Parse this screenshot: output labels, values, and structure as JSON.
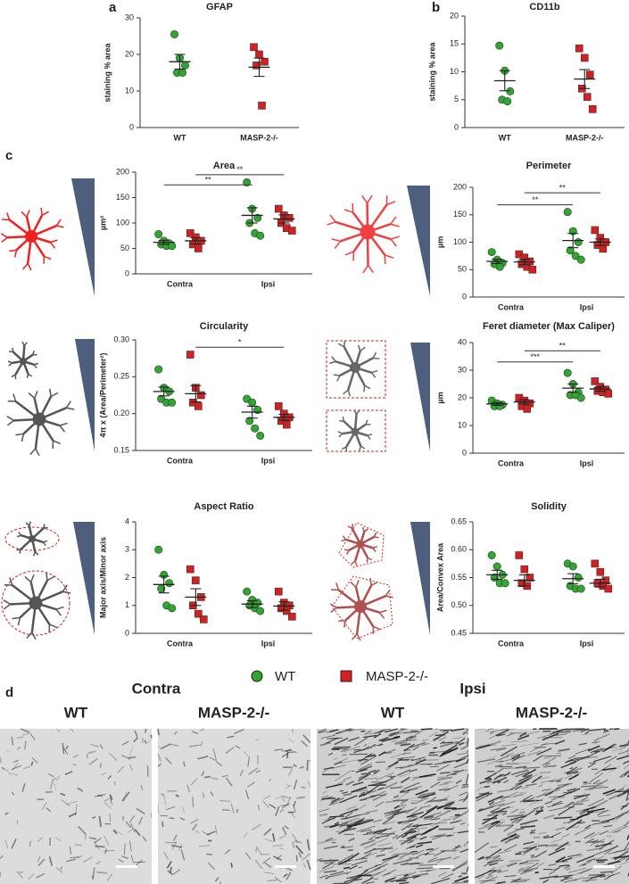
{
  "panel_labels": [
    "a",
    "b",
    "c",
    "d"
  ],
  "legend": [
    {
      "name": "WT",
      "color": "#2fa82f",
      "marker": "circle"
    },
    {
      "name": "MASP-2-/-",
      "color": "#d42020",
      "marker": "square"
    }
  ],
  "chart_data": [
    {
      "type": "dot",
      "title": "GFAP",
      "y_label": "staining % area",
      "categories": [
        "WT",
        "MASP-2-/-"
      ],
      "colors": [
        "#2fa82f",
        "#d42020"
      ],
      "markers": [
        "circle",
        "square"
      ],
      "values": [
        [
          25.5,
          19,
          17,
          15,
          15
        ],
        [
          22,
          20,
          18,
          17,
          6
        ]
      ],
      "mean": [
        18,
        16.5
      ],
      "sem": [
        2,
        2.5
      ],
      "ylim": [
        0,
        30
      ],
      "yticks": [
        0,
        10,
        20,
        30
      ]
    },
    {
      "type": "dot",
      "title": "CD11b",
      "y_label": "staining % area",
      "categories": [
        "WT",
        "MASP-2-/-"
      ],
      "colors": [
        "#2fa82f",
        "#d42020"
      ],
      "markers": [
        "circle",
        "square"
      ],
      "values": [
        [
          14.7,
          10.2,
          6.5,
          5,
          4.7
        ],
        [
          14.2,
          12.5,
          9.5,
          7,
          5.5,
          3.3
        ]
      ],
      "mean": [
        8.4,
        8.7
      ],
      "sem": [
        1.8,
        1.7
      ],
      "ylim": [
        0,
        20
      ],
      "yticks": [
        0,
        5,
        10,
        15,
        20
      ]
    },
    {
      "type": "grouped_dot",
      "title": "Area",
      "y_label": "µm²",
      "categories": [
        "Contra",
        "Ipsi"
      ],
      "series": [
        {
          "color": "#2fa82f",
          "marker": "circle",
          "values": [
            [
              78,
              65,
              60,
              58,
              55,
              55
            ],
            [
              180,
              128,
              110,
              100,
              80,
              75
            ]
          ],
          "mean": [
            62,
            115
          ],
          "sem": [
            4,
            15
          ]
        },
        {
          "color": "#d42020",
          "marker": "square",
          "values": [
            [
              80,
              72,
              65,
              58,
              50
            ],
            [
              128,
              115,
              110,
              100,
              90,
              85
            ]
          ],
          "mean": [
            65,
            108
          ],
          "sem": [
            6,
            8
          ]
        }
      ],
      "annotations": [
        {
          "text": "**",
          "y": 175,
          "series": 0
        },
        {
          "text": "**",
          "y": 195,
          "series": 1
        }
      ],
      "ylim": [
        0,
        200
      ],
      "yticks": [
        0,
        50,
        100,
        150,
        200
      ]
    },
    {
      "type": "grouped_dot",
      "title": "Perimeter",
      "y_label": "µm",
      "categories": [
        "Contra",
        "Ipsi"
      ],
      "series": [
        {
          "color": "#2fa82f",
          "marker": "circle",
          "values": [
            [
              82,
              68,
              62,
              60,
              55
            ],
            [
              155,
              120,
              100,
              85,
              75,
              68
            ]
          ],
          "mean": [
            65,
            103
          ],
          "sem": [
            4,
            13
          ]
        },
        {
          "color": "#d42020",
          "marker": "square",
          "values": [
            [
              78,
              72,
              65,
              60,
              55,
              50
            ],
            [
              122,
              108,
              100,
              95,
              88
            ]
          ],
          "mean": [
            64,
            100
          ],
          "sem": [
            5,
            6
          ]
        }
      ],
      "annotations": [
        {
          "text": "**",
          "y": 168,
          "series": 0
        },
        {
          "text": "**",
          "y": 190,
          "series": 1
        }
      ],
      "ylim": [
        0,
        200
      ],
      "yticks": [
        0,
        50,
        100,
        150,
        200
      ]
    },
    {
      "type": "grouped_dot",
      "title": "Circularity",
      "y_label": "4π x (Area/Perimeter²)",
      "categories": [
        "Contra",
        "Ipsi"
      ],
      "series": [
        {
          "color": "#2fa82f",
          "marker": "circle",
          "values": [
            [
              0.26,
              0.235,
              0.23,
              0.22,
              0.215,
              0.215
            ],
            [
              0.22,
              0.215,
              0.205,
              0.19,
              0.18,
              0.17
            ]
          ],
          "mean": [
            0.23,
            0.202
          ],
          "sem": [
            0.006,
            0.008
          ]
        },
        {
          "color": "#d42020",
          "marker": "square",
          "values": [
            [
              0.28,
              0.235,
              0.225,
              0.215,
              0.21
            ],
            [
              0.21,
              0.2,
              0.195,
              0.19,
              0.185
            ]
          ],
          "mean": [
            0.227,
            0.195
          ],
          "sem": [
            0.011,
            0.004
          ]
        }
      ],
      "annotations": [
        {
          "text": "*",
          "y": 0.29,
          "series": 1
        }
      ],
      "ylim": [
        0.15,
        0.3
      ],
      "yticks": [
        {
          "value": 0.15,
          "label": "0.15"
        },
        {
          "value": 0.2,
          "label": "0.20"
        },
        {
          "value": 0.25,
          "label": "0.25"
        },
        {
          "value": 0.3,
          "label": "0.30"
        }
      ]
    },
    {
      "type": "grouped_dot",
      "title": "Feret diameter (Max Caliper)",
      "y_label": "µm",
      "categories": [
        "Contra",
        "Ipsi"
      ],
      "series": [
        {
          "color": "#2fa82f",
          "marker": "circle",
          "values": [
            [
              19,
              18,
              17.5,
              17,
              17
            ],
            [
              29,
              25,
              22,
              21,
              21,
              20
            ]
          ],
          "mean": [
            17.8,
            23.5
          ],
          "sem": [
            0.5,
            1.5
          ]
        },
        {
          "color": "#d42020",
          "marker": "square",
          "values": [
            [
              20,
              19,
              18,
              17,
              16
            ],
            [
              26,
              24,
              23,
              22.5,
              22,
              21.5
            ]
          ],
          "mean": [
            18.5,
            23.2
          ],
          "sem": [
            0.8,
            0.8
          ]
        }
      ],
      "annotations": [
        {
          "text": "***",
          "y": 33,
          "series": 0
        },
        {
          "text": "**",
          "y": 37,
          "series": 1
        }
      ],
      "ylim": [
        0,
        40
      ],
      "yticks": [
        0,
        10,
        20,
        30,
        40
      ]
    },
    {
      "type": "grouped_dot",
      "title": "Aspect Ratio",
      "y_label": "Major axis/Minor axis",
      "categories": [
        "Contra",
        "Ipsi"
      ],
      "series": [
        {
          "color": "#2fa82f",
          "marker": "circle",
          "values": [
            [
              3.0,
              2.1,
              1.8,
              1.6,
              1.0,
              0.9
            ],
            [
              1.5,
              1.2,
              1.1,
              1.0,
              0.9,
              0.8
            ]
          ],
          "mean": [
            1.75,
            1.05
          ],
          "sem": [
            0.3,
            0.12
          ]
        },
        {
          "color": "#d42020",
          "marker": "square",
          "values": [
            [
              2.3,
              1.9,
              1.3,
              1.0,
              0.7,
              0.5
            ],
            [
              1.5,
              1.1,
              1.0,
              0.9,
              0.8,
              0.6
            ]
          ],
          "mean": [
            1.3,
            0.98
          ],
          "sem": [
            0.3,
            0.15
          ]
        }
      ],
      "annotations": [],
      "ylim": [
        0,
        4
      ],
      "yticks": [
        0,
        1,
        2,
        3,
        4
      ]
    },
    {
      "type": "grouped_dot",
      "title": "Solidity",
      "y_label": "Area/Convex Area",
      "categories": [
        "Contra",
        "Ipsi"
      ],
      "series": [
        {
          "color": "#2fa82f",
          "marker": "circle",
          "values": [
            [
              0.59,
              0.57,
              0.555,
              0.55,
              0.54,
              0.54
            ],
            [
              0.575,
              0.57,
              0.55,
              0.535,
              0.53,
              0.53
            ]
          ],
          "mean": [
            0.555,
            0.548
          ],
          "sem": [
            0.008,
            0.009
          ]
        },
        {
          "color": "#d42020",
          "marker": "square",
          "values": [
            [
              0.59,
              0.565,
              0.55,
              0.54,
              0.535
            ],
            [
              0.575,
              0.56,
              0.545,
              0.54,
              0.535,
              0.53
            ]
          ],
          "mean": [
            0.545,
            0.54
          ],
          "sem": [
            0.01,
            0.007
          ]
        }
      ],
      "annotations": [],
      "ylim": [
        0.45,
        0.65
      ],
      "yticks": [
        {
          "value": 0.45,
          "label": "0.45"
        },
        {
          "value": 0.5,
          "label": "0.50"
        },
        {
          "value": 0.55,
          "label": "0.55"
        },
        {
          "value": 0.6,
          "label": "0.60"
        },
        {
          "value": 0.65,
          "label": "0.65"
        }
      ]
    }
  ],
  "micrographs": [
    {
      "title": "Contra",
      "columns": [
        "WT",
        "MASP-2-/-"
      ]
    },
    {
      "title": "Ipsi",
      "columns": [
        "WT",
        "MASP-2-/-"
      ]
    }
  ]
}
